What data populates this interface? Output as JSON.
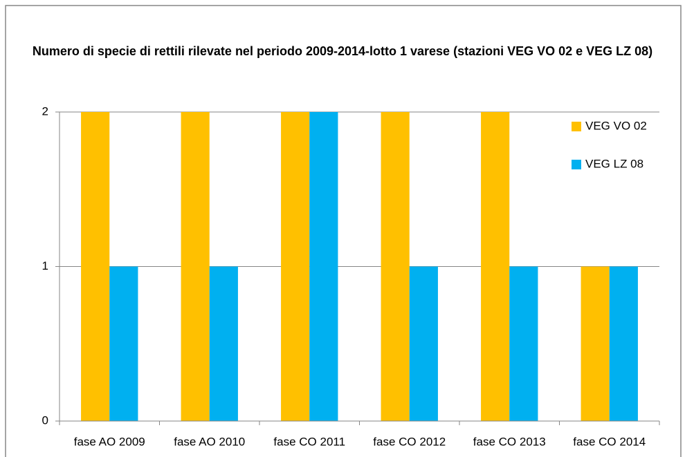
{
  "chart_data": {
    "type": "bar",
    "title": "Numero di specie di rettili rilevate nel periodo 2009-2014-lotto 1 varese (stazioni VEG VO 02 e VEG LZ 08)",
    "categories": [
      "fase AO 2009",
      "fase AO 2010",
      "fase CO 2011",
      "fase CO 2012",
      "fase CO 2013",
      "fase CO 2014"
    ],
    "series": [
      {
        "name": "VEG VO 02",
        "color": "#ffc000",
        "values": [
          2,
          2,
          2,
          2,
          2,
          1
        ]
      },
      {
        "name": "VEG LZ 08",
        "color": "#00b0f0",
        "values": [
          1,
          1,
          2,
          1,
          1,
          1
        ]
      }
    ],
    "ylim": [
      0,
      2
    ],
    "yticks": [
      0,
      1,
      2
    ],
    "grid": true,
    "legend": "right"
  }
}
